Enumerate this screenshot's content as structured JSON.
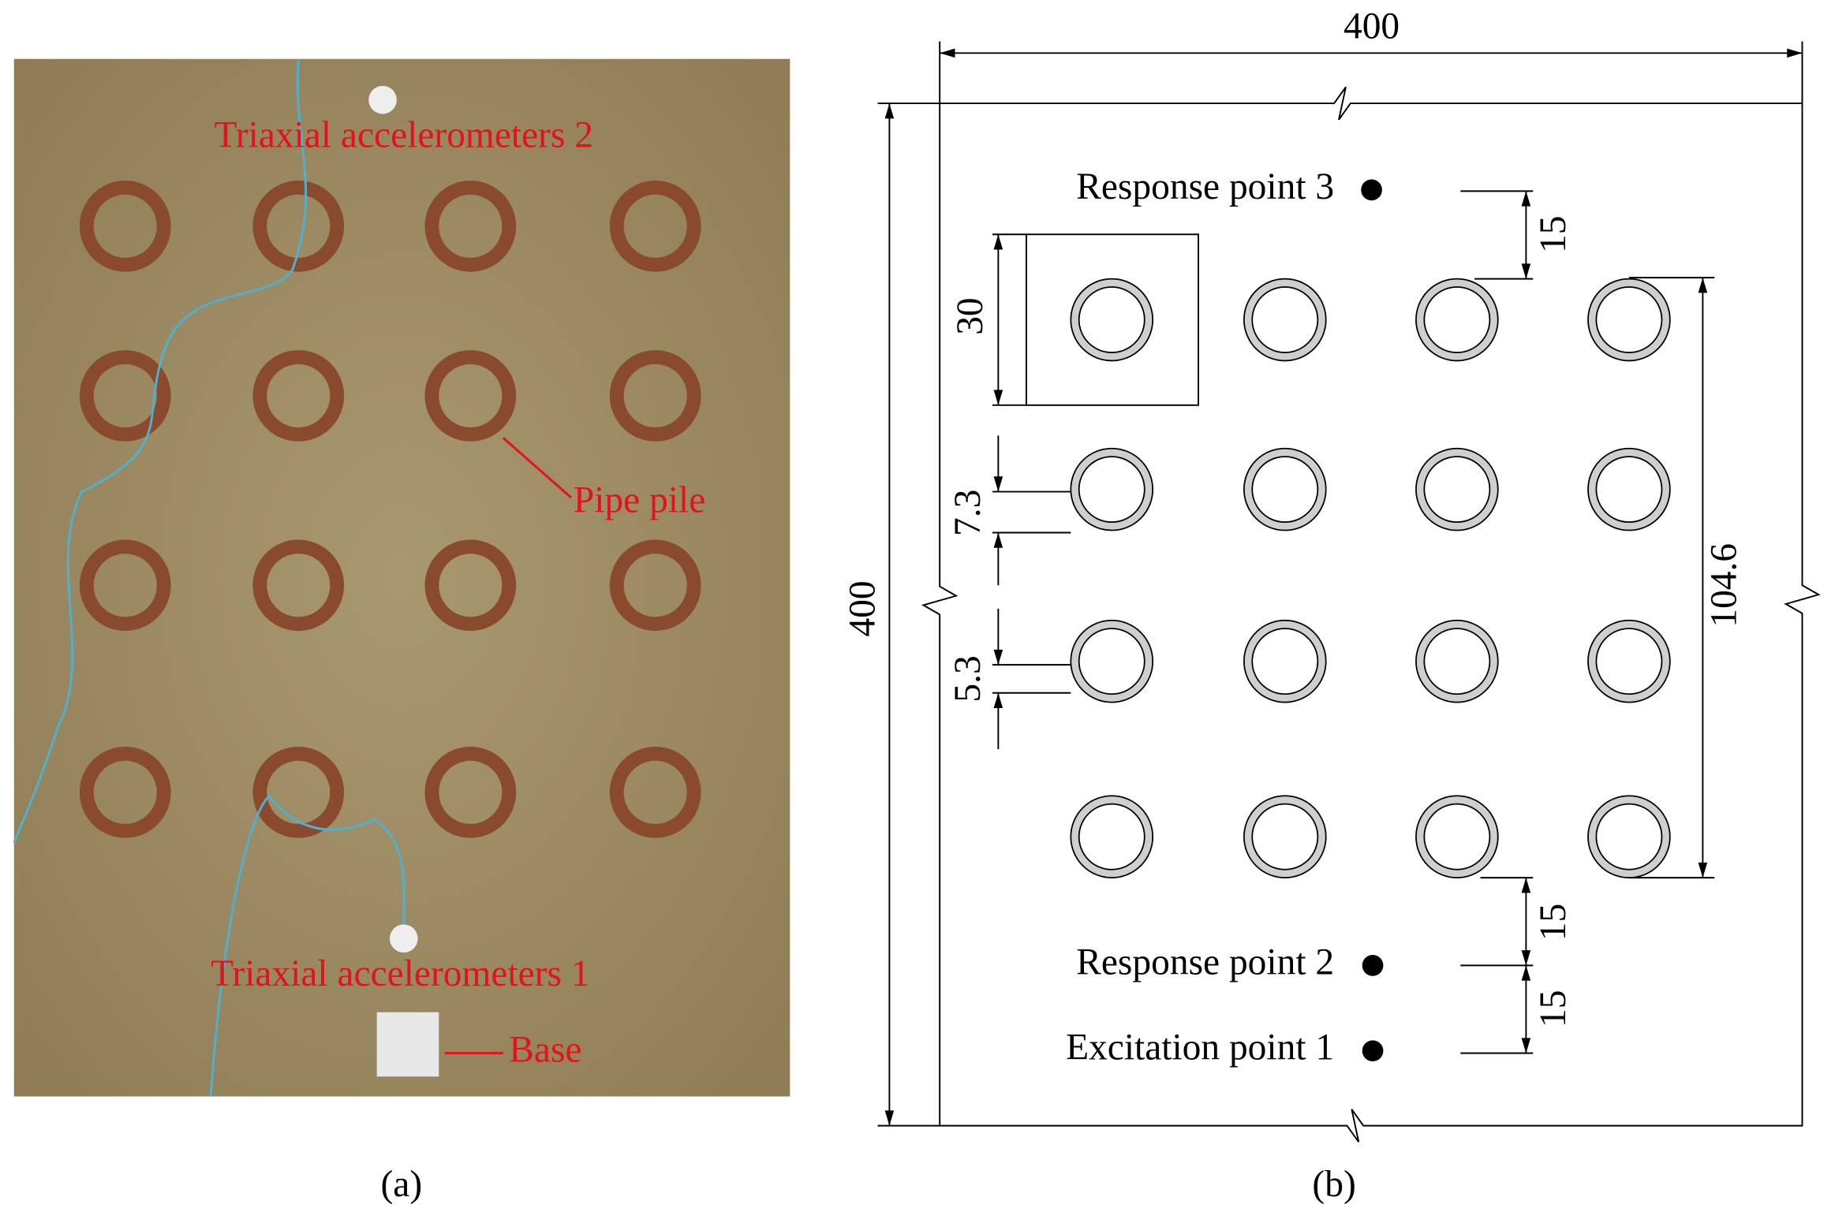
{
  "panel_a": {
    "caption": "(a)",
    "labels": [
      "Triaxial accelerometers 2",
      "Pipe pile",
      "Triaxial accelerometers 1",
      "Base"
    ]
  },
  "panel_b": {
    "caption": "(b)",
    "dimensions": [
      "400",
      "400",
      "30",
      "15",
      "104.6",
      "7.3",
      "5.3",
      "15",
      "15"
    ],
    "points": [
      "Response point 3",
      "Response point 2",
      "Excitation point 1"
    ]
  }
}
